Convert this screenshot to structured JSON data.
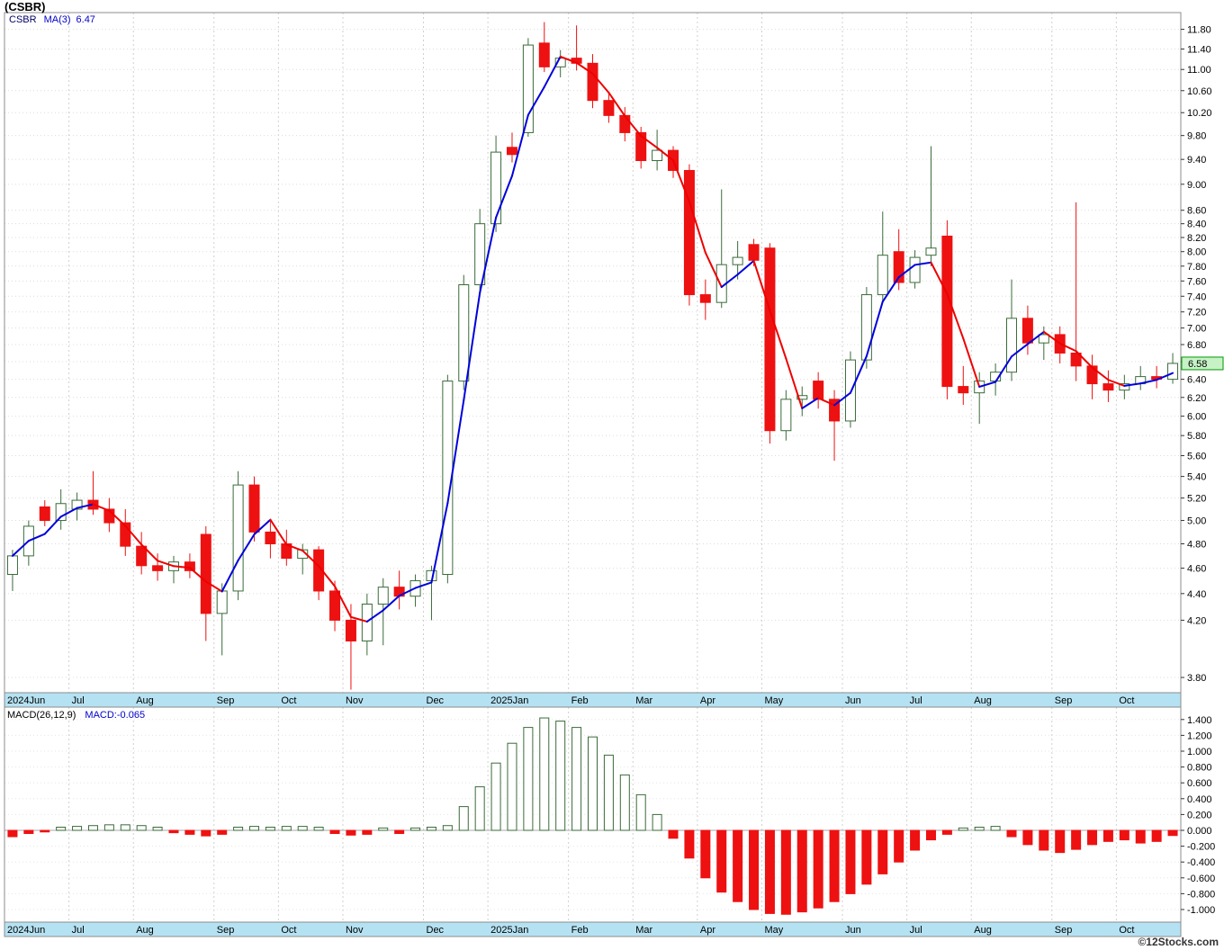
{
  "page": {
    "title": "(CSBR)",
    "copyright": "©12Stocks.com"
  },
  "main_chart": {
    "legend": {
      "symbol": "CSBR",
      "ma_label": "MA(3)",
      "ma_value": "6.47"
    },
    "last_price": "6.58",
    "y_axis_labels": [
      "11.80",
      "11.40",
      "11.00",
      "10.60",
      "10.20",
      "9.80",
      "9.40",
      "9.00",
      "8.60",
      "8.40",
      "8.20",
      "8.00",
      "7.80",
      "7.60",
      "7.40",
      "7.20",
      "7.00",
      "6.80",
      "6.60",
      "6.40",
      "6.20",
      "6.00",
      "5.80",
      "5.60",
      "5.40",
      "5.20",
      "5.00",
      "4.80",
      "4.60",
      "4.40",
      "4.20",
      "3.80"
    ]
  },
  "macd_panel": {
    "legend_label": "MACD(26,12,9)",
    "legend_value": "MACD:-0.065",
    "y_axis_labels": [
      "1.400",
      "1.200",
      "1.000",
      "0.800",
      "0.600",
      "0.400",
      "0.200",
      "0.000",
      "-0.200",
      "-0.400",
      "-0.600",
      "-0.800",
      "-1.000"
    ]
  },
  "colors": {
    "up_candle": "#3a6b3a",
    "down_candle": "#ee1111",
    "ma_up": "#0000dd",
    "ma_down": "#ee0000",
    "band": "#b5e2f2",
    "grid": "#dcdcdc",
    "month_grid": "#d0d0d0",
    "panel_border": "#8c8c8c",
    "price_box_bg": "#c6f2c6",
    "price_box_border": "#009900",
    "macd_pos": "#3a6b3a",
    "macd_neg": "#ee1111",
    "axis_text": "#000000"
  },
  "chart_data": {
    "type": "candlestick+macd",
    "title": "(CSBR)",
    "symbol": "CSBR",
    "interval": "weekly",
    "price_scale": "log",
    "price_axis_range": [
      3.7,
      12.15
    ],
    "x_labels": [
      "2024Jun",
      "Jul",
      "Aug",
      "Sep",
      "Oct",
      "Nov",
      "Dec",
      "2025Jan",
      "Feb",
      "Mar",
      "Apr",
      "May",
      "Jun",
      "Jul",
      "Aug",
      "Sep",
      "Oct"
    ],
    "month_start_indices": [
      0,
      4,
      8,
      13,
      17,
      21,
      26,
      30,
      35,
      39,
      43,
      47,
      52,
      56,
      60,
      65,
      69
    ],
    "ohlc": [
      [
        4.55,
        4.75,
        4.42,
        4.7
      ],
      [
        4.7,
        5.0,
        4.62,
        4.95
      ],
      [
        5.12,
        5.18,
        4.95,
        5.0
      ],
      [
        5.0,
        5.28,
        4.92,
        5.15
      ],
      [
        5.1,
        5.25,
        5.0,
        5.18
      ],
      [
        5.18,
        5.45,
        5.05,
        5.1
      ],
      [
        5.1,
        5.2,
        4.9,
        4.98
      ],
      [
        4.98,
        5.1,
        4.7,
        4.78
      ],
      [
        4.78,
        4.9,
        4.55,
        4.62
      ],
      [
        4.62,
        4.72,
        4.5,
        4.58
      ],
      [
        4.58,
        4.7,
        4.48,
        4.65
      ],
      [
        4.65,
        4.72,
        4.52,
        4.58
      ],
      [
        4.88,
        4.95,
        4.05,
        4.25
      ],
      [
        4.25,
        4.48,
        3.95,
        4.42
      ],
      [
        4.42,
        5.45,
        4.35,
        5.32
      ],
      [
        5.32,
        5.4,
        4.82,
        4.9
      ],
      [
        4.9,
        5.0,
        4.68,
        4.8
      ],
      [
        4.8,
        4.92,
        4.62,
        4.68
      ],
      [
        4.68,
        4.8,
        4.55,
        4.75
      ],
      [
        4.75,
        4.78,
        4.35,
        4.42
      ],
      [
        4.42,
        4.5,
        4.12,
        4.2
      ],
      [
        4.2,
        4.32,
        3.72,
        4.05
      ],
      [
        4.05,
        4.4,
        3.95,
        4.32
      ],
      [
        4.32,
        4.52,
        4.02,
        4.45
      ],
      [
        4.45,
        4.58,
        4.28,
        4.38
      ],
      [
        4.38,
        4.55,
        4.3,
        4.5
      ],
      [
        4.5,
        4.62,
        4.2,
        4.58
      ],
      [
        4.55,
        6.45,
        4.48,
        6.38
      ],
      [
        6.38,
        7.68,
        6.28,
        7.55
      ],
      [
        7.55,
        8.62,
        7.42,
        8.4
      ],
      [
        8.4,
        9.8,
        8.28,
        9.52
      ],
      [
        9.6,
        9.85,
        9.35,
        9.48
      ],
      [
        9.85,
        11.62,
        9.78,
        11.48
      ],
      [
        11.52,
        11.95,
        10.95,
        11.05
      ],
      [
        11.05,
        11.38,
        10.85,
        11.22
      ],
      [
        11.22,
        11.88,
        10.98,
        11.12
      ],
      [
        11.12,
        11.3,
        10.28,
        10.42
      ],
      [
        10.42,
        10.58,
        10.02,
        10.15
      ],
      [
        10.15,
        10.3,
        9.7,
        9.85
      ],
      [
        9.85,
        9.95,
        9.25,
        9.38
      ],
      [
        9.38,
        9.9,
        9.22,
        9.55
      ],
      [
        9.55,
        9.62,
        9.1,
        9.22
      ],
      [
        9.22,
        9.32,
        7.28,
        7.42
      ],
      [
        7.42,
        7.62,
        7.1,
        7.32
      ],
      [
        7.32,
        8.92,
        7.25,
        7.82
      ],
      [
        7.82,
        8.15,
        7.62,
        7.92
      ],
      [
        8.1,
        8.18,
        7.8,
        7.88
      ],
      [
        8.05,
        8.12,
        5.72,
        5.85
      ],
      [
        5.85,
        6.28,
        5.75,
        6.18
      ],
      [
        6.18,
        6.32,
        6.0,
        6.22
      ],
      [
        6.38,
        6.48,
        6.08,
        6.18
      ],
      [
        6.18,
        6.28,
        5.55,
        5.95
      ],
      [
        5.95,
        6.72,
        5.88,
        6.62
      ],
      [
        6.62,
        7.52,
        6.52,
        7.42
      ],
      [
        7.42,
        8.58,
        7.32,
        7.95
      ],
      [
        8.0,
        8.32,
        7.48,
        7.58
      ],
      [
        7.58,
        8.02,
        7.5,
        7.92
      ],
      [
        7.95,
        9.62,
        7.8,
        8.05
      ],
      [
        8.22,
        8.45,
        6.18,
        6.32
      ],
      [
        6.32,
        6.55,
        6.12,
        6.25
      ],
      [
        6.25,
        6.48,
        5.92,
        6.38
      ],
      [
        6.38,
        6.58,
        6.22,
        6.48
      ],
      [
        6.48,
        7.62,
        6.38,
        7.12
      ],
      [
        7.12,
        7.28,
        6.68,
        6.82
      ],
      [
        6.82,
        7.02,
        6.62,
        6.92
      ],
      [
        6.92,
        7.02,
        6.58,
        6.7
      ],
      [
        6.7,
        8.72,
        6.38,
        6.55
      ],
      [
        6.55,
        6.68,
        6.18,
        6.35
      ],
      [
        6.35,
        6.5,
        6.15,
        6.28
      ],
      [
        6.28,
        6.45,
        6.18,
        6.35
      ],
      [
        6.35,
        6.55,
        6.28,
        6.43
      ],
      [
        6.43,
        6.55,
        6.3,
        6.4
      ],
      [
        6.4,
        6.7,
        6.35,
        6.58
      ]
    ],
    "ma": {
      "period": 3,
      "last_value": 6.47
    },
    "macd": {
      "params": [
        26,
        12,
        9
      ],
      "last_value": -0.065,
      "axis_range": [
        -1.15,
        1.55
      ],
      "values": [
        -0.08,
        -0.04,
        -0.02,
        0.04,
        0.05,
        0.06,
        0.07,
        0.07,
        0.06,
        0.04,
        -0.03,
        -0.05,
        -0.07,
        -0.05,
        0.04,
        0.05,
        0.04,
        0.05,
        0.05,
        0.04,
        -0.04,
        -0.06,
        -0.05,
        0.03,
        -0.04,
        0.03,
        0.04,
        0.06,
        0.3,
        0.55,
        0.85,
        1.1,
        1.3,
        1.42,
        1.38,
        1.3,
        1.18,
        0.95,
        0.7,
        0.45,
        0.2,
        -0.1,
        -0.35,
        -0.6,
        -0.78,
        -0.9,
        -1.0,
        -1.05,
        -1.06,
        -1.03,
        -0.98,
        -0.9,
        -0.8,
        -0.68,
        -0.55,
        -0.4,
        -0.25,
        -0.12,
        -0.05,
        0.03,
        0.04,
        0.05,
        -0.08,
        -0.18,
        -0.25,
        -0.28,
        -0.24,
        -0.18,
        -0.14,
        -0.12,
        -0.16,
        -0.14,
        -0.065
      ]
    }
  }
}
